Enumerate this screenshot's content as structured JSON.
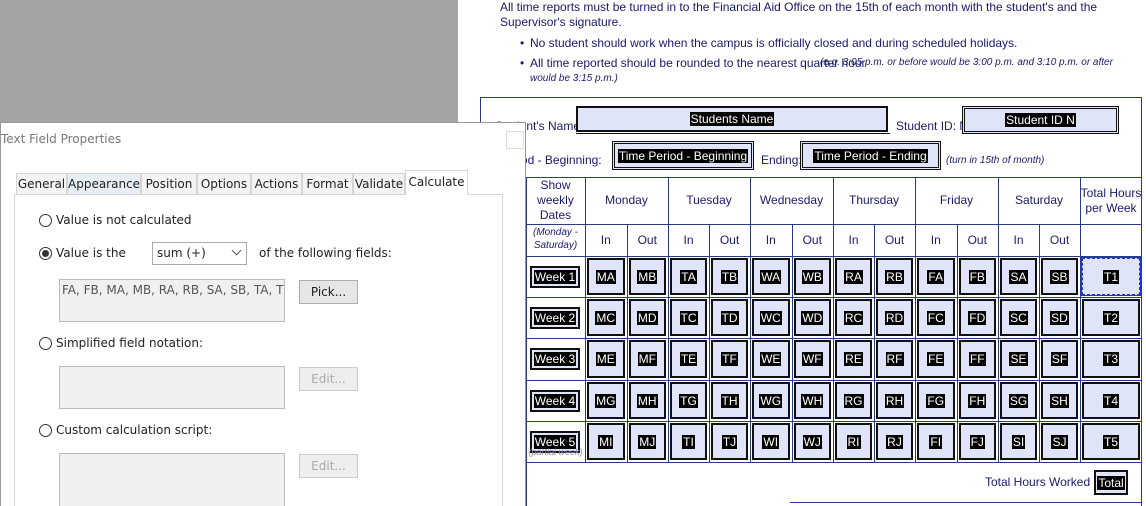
{
  "document": {
    "intro": [
      "All time reports must be turned in to the Financial Aid Office on the 15th of each month with the student's and the",
      "Supervisor's signature."
    ],
    "bullets": [
      {
        "text": "No student should work when the campus is officially closed and during scheduled holidays."
      },
      {
        "text": "All time reported should be rounded to the nearest quarter hour",
        "note_lines": [
          "(e.g. 3:05 p.m. or before would be 3:00 p.m. and 3:10 p.m. or after",
          "would be 3:15 p.m.)"
        ]
      }
    ],
    "form": {
      "name_label": "Student's Name:",
      "name_field": "Students Name",
      "id_label": "Student ID: N",
      "id_field": "Student ID N",
      "period_label": "Time Period - Beginning:",
      "period_field": "Time Period - Beginning",
      "ending_label": "Ending:",
      "ending_field": "Time Period - Ending",
      "ending_note": "(turn in 15th of month)"
    },
    "table": {
      "dates_header": [
        "Show",
        "weekly",
        "Dates"
      ],
      "days": [
        "Monday",
        "Tuesday",
        "Wednesday",
        "Thursday",
        "Friday",
        "Saturday"
      ],
      "total_header": [
        "Total Hours",
        "per Week"
      ],
      "dates_note": [
        "(Monday -",
        "Saturday)"
      ],
      "in_out": [
        "In",
        "Out"
      ],
      "rows": [
        {
          "label": "Week 1",
          "fields": [
            "MA",
            "MB",
            "TA",
            "TB",
            "WA",
            "WB",
            "RA",
            "RB",
            "FA",
            "FB",
            "SA",
            "SB"
          ],
          "total": "T1"
        },
        {
          "label": "Week 2",
          "fields": [
            "MC",
            "MD",
            "TC",
            "TD",
            "WC",
            "WD",
            "RC",
            "RD",
            "FC",
            "FD",
            "SC",
            "SD"
          ],
          "total": "T2"
        },
        {
          "label": "Week 3",
          "fields": [
            "ME",
            "MF",
            "TE",
            "TF",
            "WE",
            "WF",
            "RE",
            "RF",
            "FE",
            "FF",
            "SE",
            "SF"
          ],
          "total": "T3"
        },
        {
          "label": "Week 4",
          "fields": [
            "MG",
            "MH",
            "TG",
            "TH",
            "WG",
            "WH",
            "RG",
            "RH",
            "FG",
            "FH",
            "SG",
            "SH"
          ],
          "total": "T4"
        },
        {
          "label": "Week 5",
          "note": "(partial week)",
          "fields": [
            "MI",
            "MJ",
            "TI",
            "TJ",
            "WI",
            "WJ",
            "RI",
            "RJ",
            "FI",
            "FJ",
            "SI",
            "SJ"
          ],
          "total": "T5"
        }
      ],
      "total_label": "Total Hours Worked",
      "total_field": "Total"
    }
  },
  "dialog": {
    "title": "Text Field Properties",
    "tabs": [
      "General",
      "Appearance",
      "Position",
      "Options",
      "Actions",
      "Format",
      "Validate",
      "Calculate"
    ],
    "not_calculated": "Value is not calculated",
    "value_is": "Value is the",
    "operation": "sum (+)",
    "following": "of the following fields:",
    "fields_list": "FA, FB, MA, MB, RA, RB, SA, SB, TA, TB, WA",
    "pick": "Pick...",
    "simplified": "Simplified field notation:",
    "edit": "Edit...",
    "custom": "Custom calculation script:"
  }
}
